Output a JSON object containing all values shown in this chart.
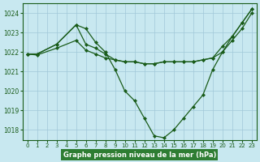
{
  "title": "Graphe pression niveau de la mer (hPa)",
  "background_color": "#c8e8f0",
  "grid_color": "#a0c8d8",
  "line_color": "#1a5c1a",
  "xlim": [
    -0.5,
    23.5
  ],
  "ylim": [
    1017.5,
    1024.5
  ],
  "yticks": [
    1018,
    1019,
    1020,
    1021,
    1022,
    1023,
    1024
  ],
  "xticks": [
    0,
    1,
    2,
    3,
    4,
    5,
    6,
    7,
    8,
    9,
    10,
    11,
    12,
    13,
    14,
    15,
    16,
    17,
    18,
    19,
    20,
    21,
    22,
    23
  ],
  "series1_x": [
    0,
    1,
    3,
    5,
    6,
    7,
    8,
    9,
    10,
    11,
    12,
    13,
    14,
    15,
    16,
    17,
    18,
    19,
    20,
    21,
    22,
    23
  ],
  "series1_y": [
    1021.9,
    1021.9,
    1022.4,
    1023.4,
    1023.2,
    1022.5,
    1022.0,
    1021.1,
    1020.0,
    1019.5,
    1018.6,
    1017.7,
    1017.6,
    1018.0,
    1018.6,
    1019.2,
    1019.8,
    1021.1,
    1022.0,
    1022.8,
    1023.5,
    1024.2
  ],
  "series2_x": [
    0,
    1,
    3,
    5,
    6,
    7,
    8,
    9,
    10,
    11,
    12,
    13,
    14,
    15,
    16,
    17,
    18,
    19,
    20,
    21,
    22,
    23
  ],
  "series2_y": [
    1021.9,
    1021.9,
    1022.4,
    1023.4,
    1022.4,
    1022.2,
    1021.9,
    1021.6,
    1021.5,
    1021.5,
    1021.4,
    1021.4,
    1021.5,
    1021.5,
    1021.5,
    1021.5,
    1021.6,
    1021.7,
    1022.3,
    1022.8,
    1023.5,
    1024.2
  ],
  "series3_x": [
    0,
    1,
    3,
    5,
    6,
    7,
    8,
    9,
    10,
    11,
    12,
    13,
    14,
    15,
    16,
    17,
    18,
    19,
    20,
    21,
    22,
    23
  ],
  "series3_y": [
    1021.9,
    1021.85,
    1022.2,
    1022.6,
    1022.1,
    1021.9,
    1021.7,
    1021.6,
    1021.5,
    1021.5,
    1021.4,
    1021.4,
    1021.5,
    1021.5,
    1021.5,
    1021.5,
    1021.6,
    1021.7,
    1022.0,
    1022.6,
    1023.2,
    1024.0
  ],
  "title_bg_color": "#2e7d32",
  "title_text_color": "#ffffff",
  "title_fontsize": 6.0,
  "tick_fontsize": 5.0,
  "marker": "D",
  "markersize": 2.0,
  "linewidth": 0.9
}
